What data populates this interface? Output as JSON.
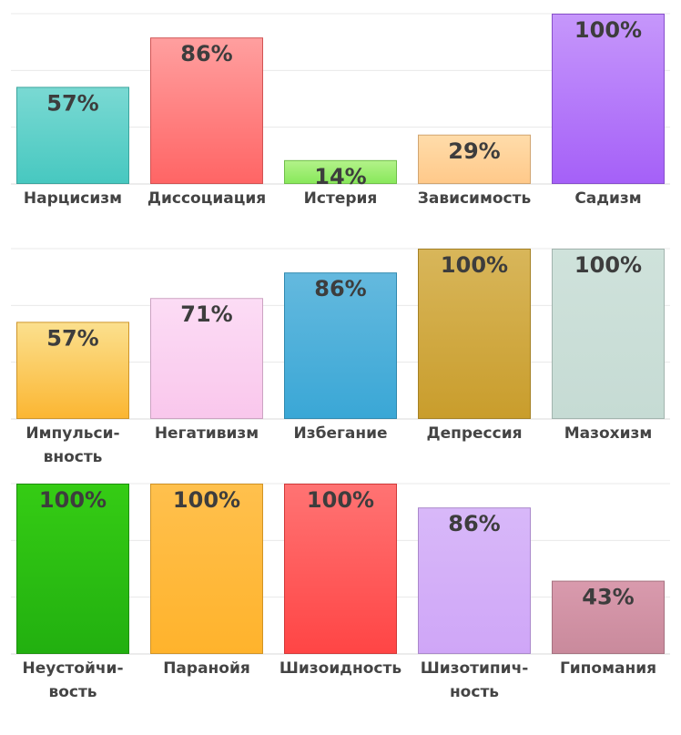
{
  "chart_data": [
    {
      "type": "bar",
      "ylim": [
        0,
        100
      ],
      "grid": true,
      "categories": [
        [
          "Нарцисизм"
        ],
        [
          "Диссоциация"
        ],
        [
          "Истерия"
        ],
        [
          "Зависимость"
        ],
        [
          "Садизм"
        ]
      ],
      "values": [
        57,
        86,
        14,
        29,
        100
      ],
      "value_labels": [
        "57%",
        "86%",
        "14%",
        "29%",
        "100%"
      ],
      "colors": [
        [
          "#7ad9d3",
          "#47c8c0"
        ],
        [
          "#ff9f9f",
          "#ff6565"
        ],
        [
          "#b3f28a",
          "#88e85a"
        ],
        [
          "#ffdcaa",
          "#ffc98a"
        ],
        [
          "#c697fb",
          "#a560f8"
        ]
      ]
    },
    {
      "type": "bar",
      "ylim": [
        0,
        100
      ],
      "grid": true,
      "categories": [
        [
          "Импульси-",
          "вность"
        ],
        [
          "Негативизм"
        ],
        [
          "Избегание"
        ],
        [
          "Депрессия"
        ],
        [
          "Мазохизм"
        ]
      ],
      "values": [
        57,
        71,
        86,
        100,
        100
      ],
      "value_labels": [
        "57%",
        "71%",
        "86%",
        "100%",
        "100%"
      ],
      "colors": [
        [
          "#fbe08e",
          "#fbb632"
        ],
        [
          "#fcdcf5",
          "#f9c7ec"
        ],
        [
          "#64b9de",
          "#3aa7d6"
        ],
        [
          "#d8b65a",
          "#c99d2c"
        ],
        [
          "#cfe2db",
          "#c6dbd4"
        ]
      ]
    },
    {
      "type": "bar",
      "ylim": [
        0,
        100
      ],
      "grid": true,
      "categories": [
        [
          "Неустойчи-",
          "вость"
        ],
        [
          "Паранойя"
        ],
        [
          "Шизоидность"
        ],
        [
          "Шизотипич-",
          "ность"
        ],
        [
          "Гипомания"
        ]
      ],
      "values": [
        100,
        100,
        100,
        86,
        43
      ],
      "value_labels": [
        "100%",
        "100%",
        "100%",
        "86%",
        "43%"
      ],
      "colors": [
        [
          "#35cc14",
          "#22b010"
        ],
        [
          "#ffc04d",
          "#ffb32c"
        ],
        [
          "#ff7373",
          "#ff4545"
        ],
        [
          "#d8b8f9",
          "#cfa6f7"
        ],
        [
          "#d99aad",
          "#c98a9c"
        ]
      ]
    }
  ]
}
